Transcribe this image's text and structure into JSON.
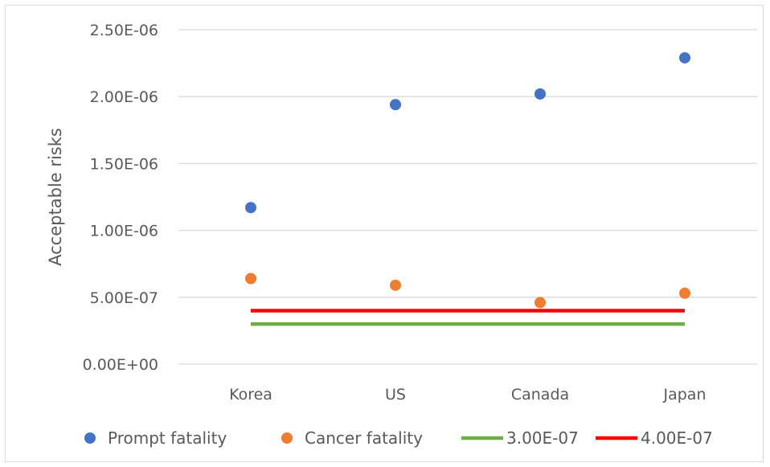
{
  "chart_data": {
    "type": "scatter",
    "title": "",
    "xlabel": "",
    "ylabel": "Acceptable risks",
    "categories": [
      "Korea",
      "US",
      "Canada",
      "Japan"
    ],
    "ylim": [
      0,
      2.5e-06
    ],
    "yticks": [
      {
        "value": 0,
        "label": "0.00E+00"
      },
      {
        "value": 5e-07,
        "label": "5.00E-07"
      },
      {
        "value": 1e-06,
        "label": "1.00E-06"
      },
      {
        "value": 1.5e-06,
        "label": "1.50E-06"
      },
      {
        "value": 2e-06,
        "label": "2.00E-06"
      },
      {
        "value": 2.5e-06,
        "label": "2.50E-06"
      }
    ],
    "grid": true,
    "legend_position": "bottom",
    "series": [
      {
        "name": "Prompt fatality",
        "kind": "marker",
        "color": "#4472c4",
        "values": [
          1.17e-06,
          1.94e-06,
          2.02e-06,
          2.29e-06
        ]
      },
      {
        "name": "Cancer fatality",
        "kind": "marker",
        "color": "#ed7d31",
        "values": [
          6.4e-07,
          5.9e-07,
          4.6e-07,
          5.3e-07
        ]
      },
      {
        "name": "3.00E-07",
        "kind": "line",
        "color": "#70ad47",
        "values": [
          3e-07,
          3e-07,
          3e-07,
          3e-07
        ]
      },
      {
        "name": "4.00E-07",
        "kind": "line",
        "color": "#ff0000",
        "values": [
          4e-07,
          4e-07,
          4e-07,
          4e-07
        ]
      }
    ]
  }
}
